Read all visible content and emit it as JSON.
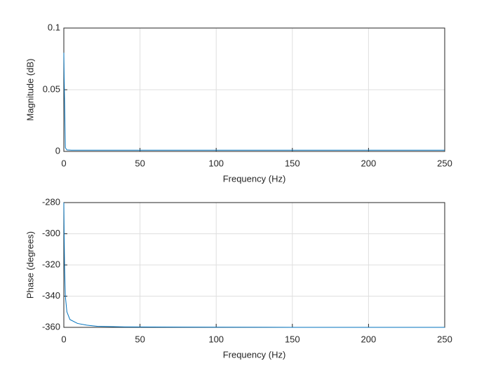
{
  "chart_data": [
    {
      "type": "line",
      "xlabel": "Frequency (Hz)",
      "ylabel": "Magnitude (dB)",
      "color": "#0072bd",
      "x": [
        0,
        0.2,
        0.5,
        1,
        2,
        5,
        10,
        50,
        100,
        150,
        200,
        250
      ],
      "values": [
        0.08,
        0.06,
        0.04,
        0.003,
        0.0012,
        0.001,
        0.001,
        0.001,
        0.001,
        0.001,
        0.001,
        0.001
      ],
      "xlim": [
        0,
        250
      ],
      "xticks": [
        0,
        50,
        100,
        150,
        200,
        250
      ],
      "ylim": [
        0,
        0.1
      ],
      "yticks": [
        0,
        0.05,
        0.1
      ],
      "grid": true
    },
    {
      "type": "line",
      "xlabel": "Frequency (Hz)",
      "ylabel": "Phase (degrees)",
      "color": "#0072bd",
      "x": [
        0,
        0.2,
        0.5,
        1,
        2,
        4,
        9,
        15,
        22,
        40,
        100,
        150,
        200,
        250
      ],
      "values": [
        -280,
        -300,
        -322,
        -340,
        -350,
        -355,
        -357.5,
        -358.6,
        -359.3,
        -359.7,
        -359.9,
        -360,
        -360,
        -360
      ],
      "xlim": [
        0,
        250
      ],
      "xticks": [
        0,
        50,
        100,
        150,
        200,
        250
      ],
      "ylim": [
        -360,
        -280
      ],
      "yticks": [
        -360,
        -340,
        -320,
        -300,
        -280
      ],
      "grid": true
    }
  ]
}
